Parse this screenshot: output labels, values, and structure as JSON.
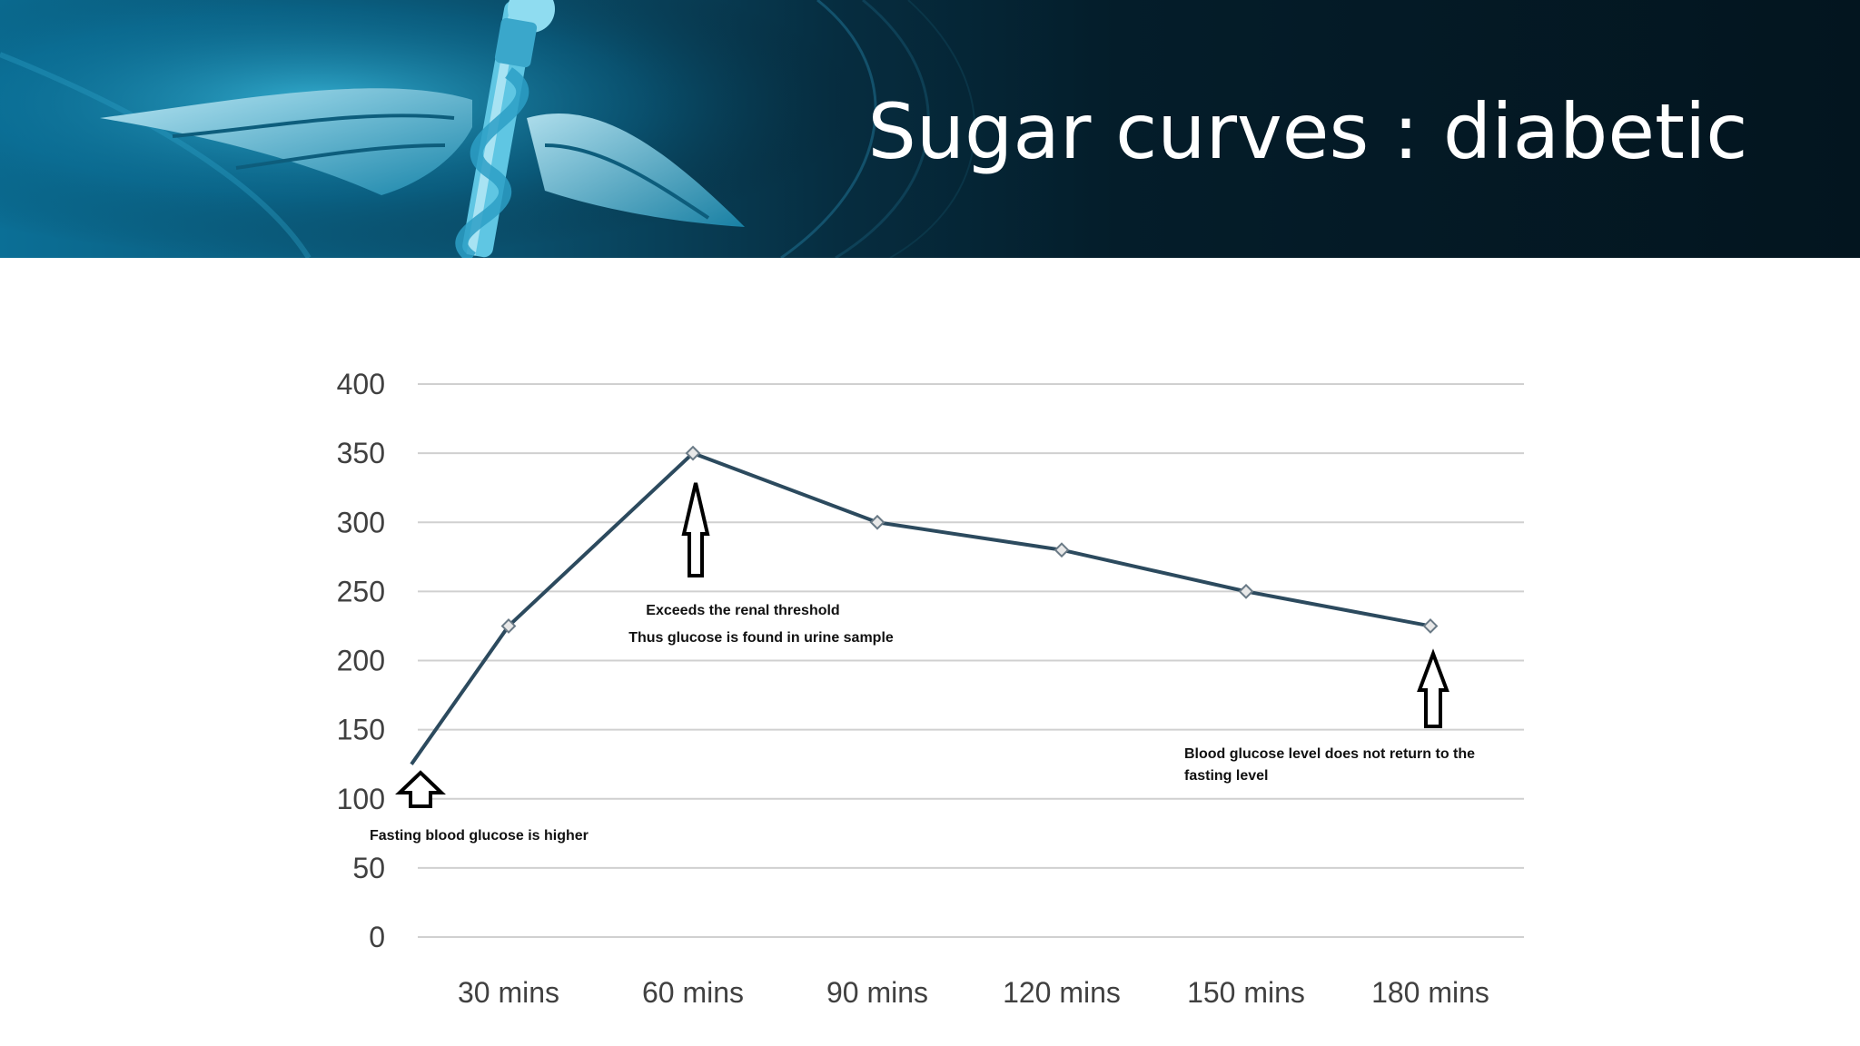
{
  "slide": {
    "title": "Sugar curves : diabetic",
    "banner_emblem": "caduceus-icon",
    "colors": {
      "banner_dark": "#03151f",
      "banner_accent": "#0b6f96",
      "line": "#2c4a5e",
      "grid": "#d0d0d0"
    }
  },
  "chart_data": {
    "type": "line",
    "title": "",
    "xlabel": "",
    "ylabel": "",
    "categories": [
      "30 mins",
      "60 mins",
      "90 mins",
      "120 mins",
      "150 mins",
      "180 mins"
    ],
    "series": [
      {
        "values": [
          225,
          350,
          300,
          280,
          250,
          225
        ],
        "start_value": 125
      }
    ],
    "yticks": [
      "0",
      "50",
      "100",
      "150",
      "200",
      "250",
      "300",
      "350",
      "400"
    ],
    "ylim": [
      0,
      400
    ],
    "grid": true,
    "legend": "none",
    "annotations": [
      {
        "lines": [
          "Exceeds the renal threshold",
          "Thus glucose is found in urine sample"
        ],
        "category": "60 mins",
        "arrow": "up"
      },
      {
        "lines": [
          "Blood glucose level does not return to the",
          "fasting level"
        ],
        "category": "180 mins",
        "arrow": "up"
      },
      {
        "lines": [
          "Fasting blood glucose is higher"
        ],
        "category": "start",
        "arrow": "up"
      }
    ]
  }
}
